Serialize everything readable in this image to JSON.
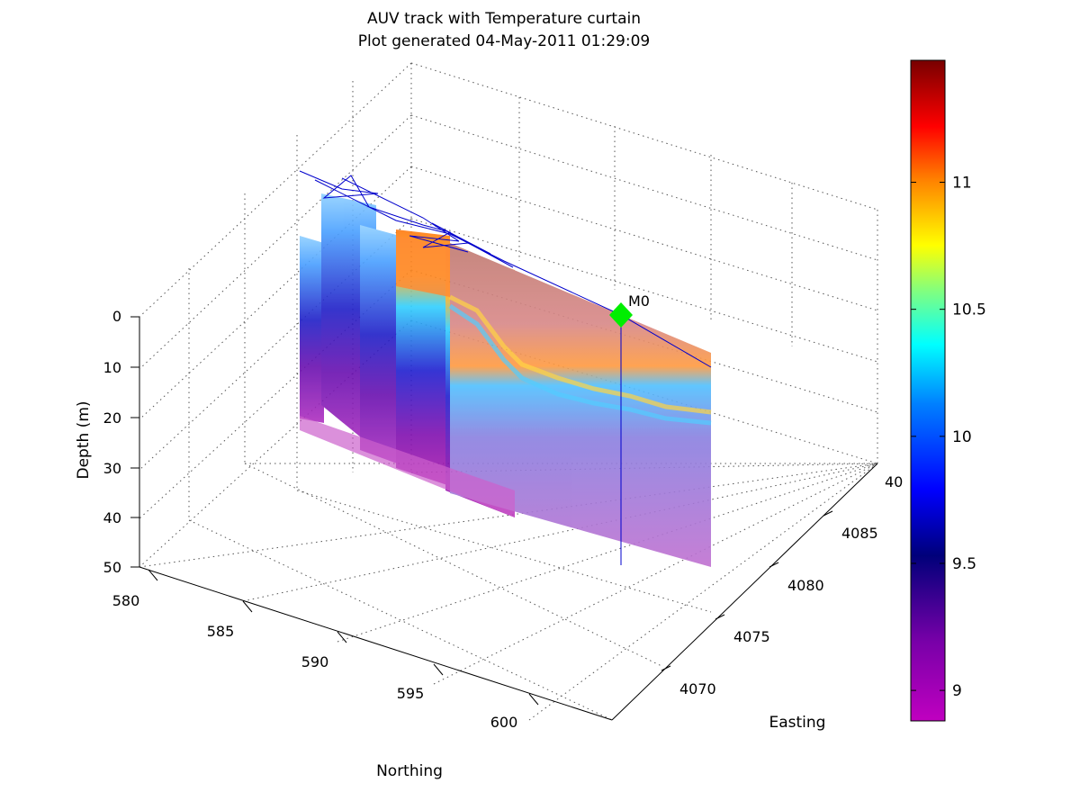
{
  "chart_data": {
    "type": "3d-curtain",
    "title": "AUV track with Temperature curtain",
    "subtitle": "Plot generated 04-May-2011 01:29:09",
    "xlabel": "Northing",
    "ylabel": "Easting",
    "zlabel": "Depth (m)",
    "x_ticks": [
      "580",
      "585",
      "590",
      "595",
      "600"
    ],
    "y_ticks": [
      "4070",
      "4075",
      "4080",
      "4085",
      "40"
    ],
    "z_ticks": [
      "0",
      "10",
      "20",
      "30",
      "40",
      "50"
    ],
    "zlim": [
      0,
      50
    ],
    "z_reversed": true,
    "grid": true,
    "colormap": "jet",
    "colorbar": {
      "ticks": [
        "9",
        "9.5",
        "10",
        "10.5",
        "11"
      ],
      "tick_values": [
        9,
        9.5,
        10,
        10.5,
        11
      ],
      "range": [
        8.88,
        11.48
      ],
      "placement": "right"
    },
    "marker": {
      "label": "M0",
      "color": "#00ee00",
      "shape": "diamond"
    },
    "track": {
      "color": "#0000cc"
    }
  }
}
